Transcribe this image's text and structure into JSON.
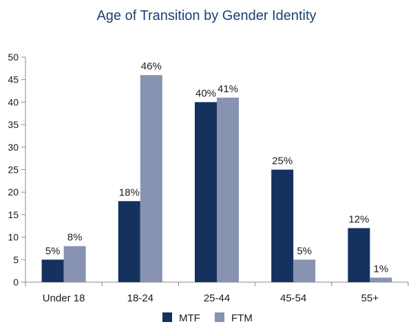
{
  "chart_data": {
    "type": "bar",
    "title": "Age of Transition by Gender Identity",
    "xlabel": "",
    "ylabel": "",
    "categories": [
      "Under 18",
      "18-24",
      "25-44",
      "45-54",
      "55+"
    ],
    "series": [
      {
        "name": "MTF",
        "values": [
          5,
          18,
          40,
          25,
          12
        ],
        "labels": [
          "5%",
          "18%",
          "40%",
          "25%",
          "12%"
        ],
        "color": "#15325f"
      },
      {
        "name": "FTM",
        "values": [
          8,
          46,
          41,
          5,
          1
        ],
        "labels": [
          "8%",
          "46%",
          "41%",
          "5%",
          "1%"
        ],
        "color": "#8793b1"
      }
    ],
    "ylim": [
      0,
      50
    ],
    "yticks": [
      0,
      5,
      10,
      15,
      20,
      25,
      30,
      35,
      40,
      45,
      50
    ],
    "grid": false,
    "legend_position": "bottom"
  }
}
